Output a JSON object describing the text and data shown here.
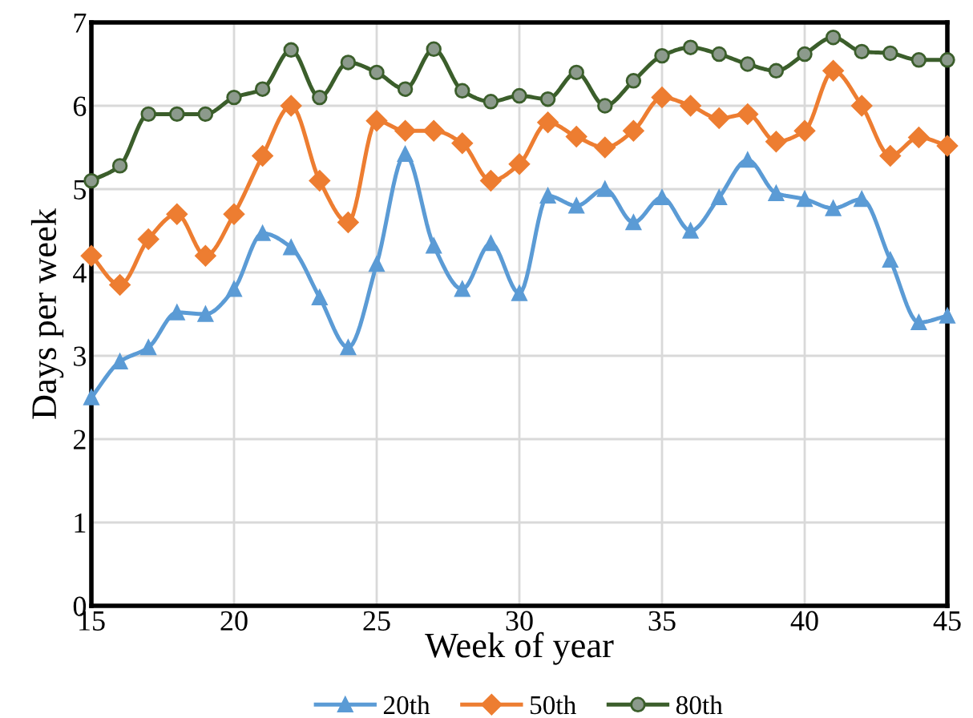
{
  "chart_data": {
    "type": "line",
    "xlabel": "Week of year",
    "ylabel": "Days per week",
    "x": [
      15,
      16,
      17,
      18,
      19,
      20,
      21,
      22,
      23,
      24,
      25,
      26,
      27,
      28,
      29,
      30,
      31,
      32,
      33,
      34,
      35,
      36,
      37,
      38,
      39,
      40,
      41,
      42,
      43,
      44,
      45
    ],
    "series": [
      {
        "name": "20th",
        "color": "#5b9bd5",
        "marker": "triangle",
        "values": [
          2.5,
          2.93,
          3.1,
          3.52,
          3.5,
          3.8,
          4.47,
          4.3,
          3.7,
          3.1,
          4.1,
          5.42,
          4.32,
          3.8,
          4.35,
          3.75,
          4.92,
          4.8,
          5.0,
          4.6,
          4.9,
          4.5,
          4.9,
          5.35,
          4.95,
          4.88,
          4.77,
          4.88,
          4.15,
          3.4,
          3.48
        ]
      },
      {
        "name": "50th",
        "color": "#ed7d31",
        "marker": "diamond",
        "values": [
          4.2,
          3.85,
          4.4,
          4.7,
          4.2,
          4.7,
          5.4,
          6.0,
          5.1,
          4.6,
          5.82,
          5.7,
          5.7,
          5.55,
          5.1,
          5.3,
          5.8,
          5.63,
          5.5,
          5.7,
          6.1,
          6.0,
          5.85,
          5.9,
          5.57,
          5.7,
          6.42,
          6.0,
          5.4,
          5.62,
          5.52
        ]
      },
      {
        "name": "80th",
        "color": "#3b5e2b",
        "marker": "circle",
        "values": [
          5.1,
          5.28,
          5.9,
          5.9,
          5.9,
          6.1,
          6.2,
          6.67,
          6.1,
          6.52,
          6.4,
          6.2,
          6.68,
          6.18,
          6.05,
          6.12,
          6.08,
          6.4,
          6.0,
          6.3,
          6.6,
          6.7,
          6.62,
          6.5,
          6.42,
          6.62,
          6.82,
          6.65,
          6.63,
          6.55,
          6.55
        ]
      }
    ],
    "xlim": [
      15,
      45
    ],
    "xticks": [
      15,
      20,
      25,
      30,
      35,
      40,
      45
    ],
    "ylim": [
      0,
      7
    ],
    "yticks": [
      0,
      1,
      2,
      3,
      4,
      5,
      6,
      7
    ],
    "grid": true,
    "legend": "bottom",
    "line_style": "solid"
  }
}
